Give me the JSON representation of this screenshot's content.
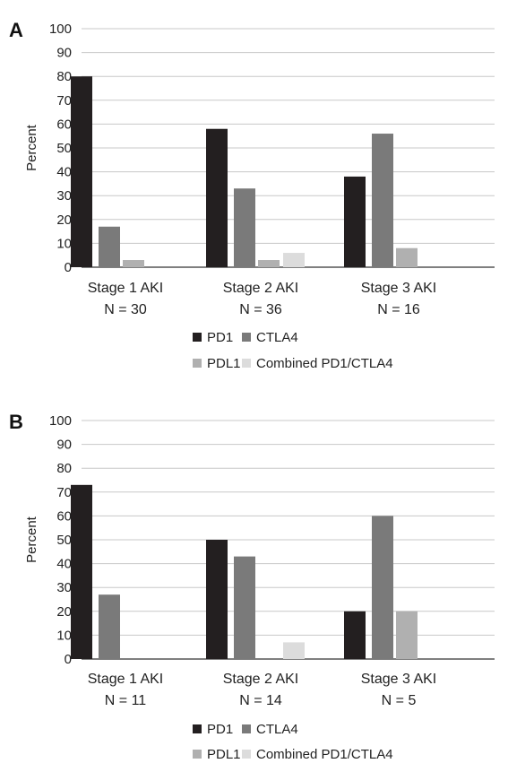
{
  "colors": {
    "PD1": "#231f20",
    "CTLA4": "#7a7a7a",
    "PDL1": "#b0b0b0",
    "Combined PD1/CTLA4": "#dcdcdc",
    "grid": "#c8c8c8",
    "axis": "#333333"
  },
  "chart_data": [
    {
      "type": "bar",
      "panel_label": "A",
      "ylabel": "Percent",
      "ylim": [
        0,
        100
      ],
      "yticks": [
        0,
        10,
        20,
        30,
        40,
        50,
        60,
        70,
        80,
        90,
        100
      ],
      "grid": true,
      "legend_position": "bottom",
      "categories": [
        "Stage 1 AKI",
        "Stage 2 AKI",
        "Stage 3 AKI"
      ],
      "category_n": [
        "N = 30",
        "N = 36",
        "N = 16"
      ],
      "series": [
        {
          "name": "PD1",
          "values": [
            80,
            58,
            38
          ]
        },
        {
          "name": "CTLA4",
          "values": [
            17,
            33,
            56
          ]
        },
        {
          "name": "PDL1",
          "values": [
            3,
            3,
            8
          ]
        },
        {
          "name": "Combined PD1/CTLA4",
          "values": [
            0,
            6,
            0
          ]
        }
      ]
    },
    {
      "type": "bar",
      "panel_label": "B",
      "ylabel": "Percent",
      "ylim": [
        0,
        100
      ],
      "yticks": [
        0,
        10,
        20,
        30,
        40,
        50,
        60,
        70,
        80,
        90,
        100
      ],
      "grid": true,
      "legend_position": "bottom",
      "categories": [
        "Stage 1 AKI",
        "Stage 2 AKI",
        "Stage 3 AKI"
      ],
      "category_n": [
        "N = 11",
        "N = 14",
        "N = 5"
      ],
      "series": [
        {
          "name": "PD1",
          "values": [
            73,
            50,
            20
          ]
        },
        {
          "name": "CTLA4",
          "values": [
            27,
            43,
            60
          ]
        },
        {
          "name": "PDL1",
          "values": [
            0,
            0,
            20
          ]
        },
        {
          "name": "Combined PD1/CTLA4",
          "values": [
            0,
            7,
            0
          ]
        }
      ]
    }
  ]
}
